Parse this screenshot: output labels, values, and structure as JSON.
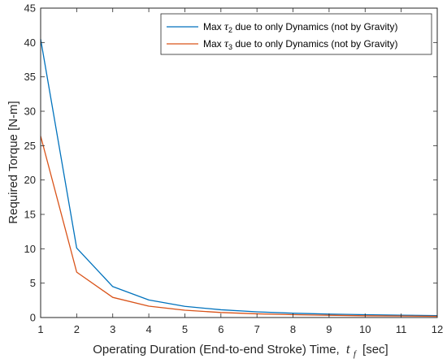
{
  "chart_data": {
    "type": "line",
    "title": "",
    "xlabel": "Operating Duration (End-to-end Stroke) Time,",
    "xlabel_symbol": "t",
    "xlabel_subscript": "f",
    "xlabel_unit": "[sec]",
    "ylabel": "Required Torque [N-m]",
    "xlim": [
      1,
      12
    ],
    "ylim": [
      0,
      45
    ],
    "xticks": [
      1,
      2,
      3,
      4,
      5,
      6,
      7,
      8,
      9,
      10,
      11,
      12
    ],
    "yticks": [
      0,
      5,
      10,
      15,
      20,
      25,
      30,
      35,
      40,
      45
    ],
    "grid": false,
    "legend_position": "top-right",
    "x": [
      1,
      2,
      3,
      4,
      5,
      6,
      7,
      8,
      9,
      10,
      11,
      12
    ],
    "series": [
      {
        "name": "Max τ_2 due to only Dynamics (not by Gravity)",
        "legend_prefix": "Max ",
        "legend_symbol": "τ",
        "legend_subscript": "2",
        "legend_suffix": " due to only Dynamics (not by Gravity)",
        "color": "#0072bd",
        "values": [
          40.5,
          10.1,
          4.5,
          2.55,
          1.62,
          1.13,
          0.83,
          0.63,
          0.5,
          0.41,
          0.34,
          0.28
        ]
      },
      {
        "name": "Max τ_3 due to only Dynamics (not by Gravity)",
        "legend_prefix": "Max ",
        "legend_symbol": "τ",
        "legend_subscript": "3",
        "legend_suffix": " due to only Dynamics (not by Gravity)",
        "color": "#d95319",
        "values": [
          26.4,
          6.6,
          2.93,
          1.65,
          1.06,
          0.73,
          0.54,
          0.41,
          0.33,
          0.26,
          0.22,
          0.18
        ]
      }
    ]
  }
}
